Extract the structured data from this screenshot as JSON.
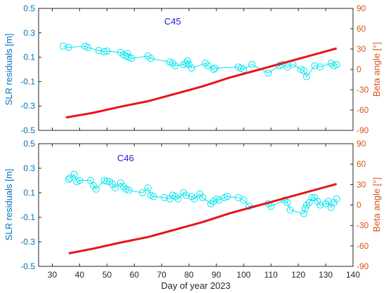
{
  "colors": {
    "residual": "#00e5ee",
    "residual_axis": "#0072bd",
    "beta_line": "#e8141b",
    "beta_axis": "#d95319",
    "title": "#1f1fd0"
  },
  "xlabel": "Day of year 2023",
  "x_ticks": [
    "30",
    "40",
    "50",
    "60",
    "70",
    "80",
    "90",
    "100",
    "110",
    "120",
    "130",
    "140"
  ],
  "chart_data": [
    {
      "type": "line",
      "title": "C45",
      "ylabel": "SLR residuals [m]",
      "y2label": "Beta angle [°]",
      "xlim": [
        25,
        140
      ],
      "ylim": [
        -0.5,
        0.5
      ],
      "y2lim": [
        -90,
        90
      ],
      "y_ticks": [
        "0.5",
        "0.3",
        "0.1",
        "-0.1",
        "-0.3",
        "-0.5"
      ],
      "y2_ticks": [
        "90",
        "60",
        "30",
        "0",
        "-30",
        "-60",
        "-90"
      ],
      "series": [
        {
          "axis": "left",
          "marker": "circle",
          "x": [
            34,
            36,
            42,
            43,
            47,
            49,
            50,
            55,
            56,
            57,
            57.5,
            58,
            59,
            65,
            66,
            73,
            74,
            75,
            78,
            79,
            79.5,
            80,
            81,
            86,
            87,
            89,
            89.5,
            98,
            99,
            100,
            103,
            109,
            113,
            114,
            116,
            118,
            121,
            122,
            123,
            126,
            128,
            132,
            133,
            134
          ],
          "y": [
            0.19,
            0.18,
            0.19,
            0.18,
            0.155,
            0.145,
            0.15,
            0.14,
            0.12,
            0.11,
            0.13,
            0.1,
            0.09,
            0.11,
            0.09,
            0.06,
            0.05,
            0.03,
            0.04,
            0.05,
            0.07,
            0.04,
            0.01,
            0.05,
            0.03,
            0.0,
            0.01,
            0.02,
            0.01,
            0.0,
            0.04,
            -0.03,
            0.03,
            0.04,
            0.02,
            0.04,
            0.0,
            -0.01,
            -0.06,
            0.03,
            0.02,
            0.05,
            0.03,
            0.04
          ]
        },
        {
          "axis": "right",
          "x": [
            35,
            45,
            55,
            65,
            75,
            85,
            95,
            105,
            115,
            125,
            134
          ],
          "y": [
            -71,
            -64,
            -55,
            -47,
            -36,
            -25,
            -12,
            -1,
            10,
            21,
            31
          ]
        }
      ]
    },
    {
      "type": "line",
      "title": "C46",
      "ylabel": "SLR residuals [m]",
      "y2label": "Beta angle [°]",
      "xlim": [
        25,
        140
      ],
      "ylim": [
        -0.5,
        0.5
      ],
      "y2lim": [
        -90,
        90
      ],
      "y_ticks": [
        "0.5",
        "0.3",
        "0.1",
        "-0.1",
        "-0.3",
        "-0.5"
      ],
      "y2_ticks": [
        "90",
        "60",
        "30",
        "0",
        "-30",
        "-60",
        "-90"
      ],
      "series": [
        {
          "axis": "left",
          "marker": "circle",
          "x": [
            36,
            36.5,
            38,
            39,
            40,
            44,
            45,
            46,
            49,
            50,
            51,
            52,
            53,
            55,
            56,
            57,
            58,
            63,
            65,
            66,
            67,
            71,
            73,
            74,
            75,
            76,
            78,
            79,
            81,
            82,
            84,
            85,
            88,
            89,
            90,
            91,
            93,
            94,
            98,
            100,
            102,
            109,
            110,
            115,
            116,
            117,
            122,
            122.5,
            123,
            124,
            125,
            126,
            127,
            128,
            130,
            131,
            132,
            133,
            134
          ],
          "y": [
            0.21,
            0.22,
            0.25,
            0.19,
            0.2,
            0.2,
            0.16,
            0.13,
            0.2,
            0.195,
            0.19,
            0.17,
            0.14,
            0.18,
            0.15,
            0.13,
            0.12,
            0.1,
            0.14,
            0.08,
            0.07,
            0.06,
            0.05,
            0.08,
            0.07,
            0.05,
            0.1,
            0.08,
            0.07,
            0.05,
            0.09,
            0.06,
            0.01,
            0.03,
            0.05,
            0.04,
            0.06,
            0.07,
            0.06,
            0.04,
            -0.01,
            0.01,
            -0.01,
            0.04,
            0.02,
            -0.04,
            -0.07,
            -0.03,
            0.0,
            0.02,
            0.06,
            0.06,
            0.03,
            0.0,
            0.01,
            0.03,
            -0.02,
            0.02,
            0.05
          ]
        },
        {
          "axis": "right",
          "x": [
            36,
            45,
            55,
            65,
            75,
            85,
            95,
            105,
            115,
            125,
            134
          ],
          "y": [
            -71,
            -64,
            -55,
            -47,
            -36,
            -25,
            -12,
            -1,
            10,
            21,
            31
          ]
        }
      ]
    }
  ]
}
